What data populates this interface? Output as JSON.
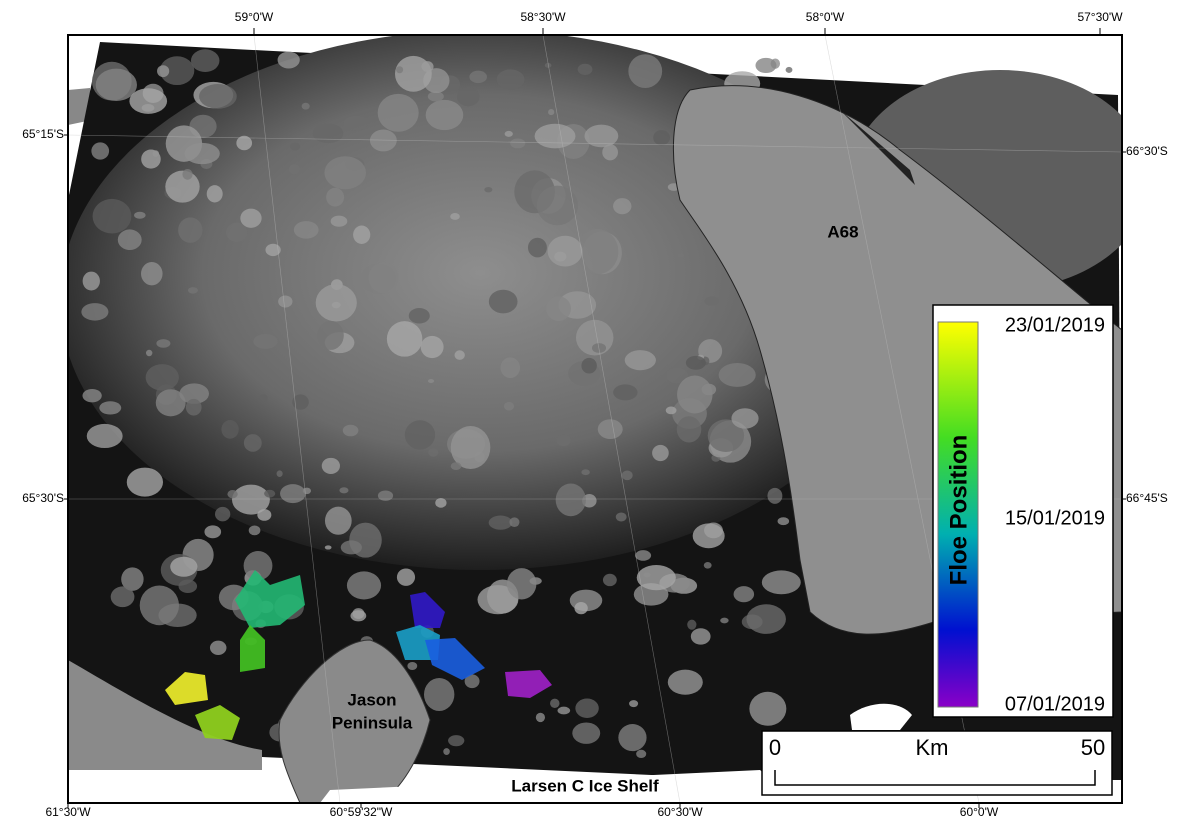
{
  "graticule": {
    "top": [
      "59°0'W",
      "58°30'W",
      "58°0'W",
      "57°30'W"
    ],
    "left": [
      "65°15'S",
      "65°30'S"
    ],
    "right": [
      "66°30'S",
      "66°45'S"
    ],
    "bottom": [
      "61°30'W",
      "60°59'32\"W",
      "60°30'W",
      "60°0'W"
    ]
  },
  "labels": {
    "iceberg": "A68",
    "peninsula": [
      "Jason",
      "Peninsula"
    ],
    "ice_shelf": "Larsen C Ice Shelf"
  },
  "legend": {
    "title": "Floe Position",
    "max": "23/01/2019",
    "mid": "15/01/2019",
    "min": "07/01/2019"
  },
  "scale_bar": {
    "start": "0",
    "unit": "Km",
    "end": "50"
  }
}
